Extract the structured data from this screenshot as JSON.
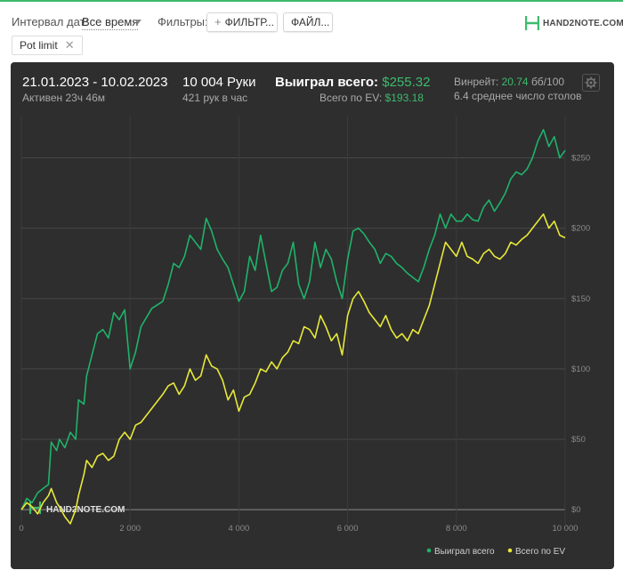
{
  "toolbar": {
    "interval_label": "Интервал дат:",
    "interval_value": "Все время",
    "filters_label": "Фильтры:",
    "filters_button": "ФИЛЬТР...",
    "files_button": "ФАЙЛ...",
    "logo_text": "HAND2NOTE.COM"
  },
  "chip": {
    "label": "Pot limit",
    "close": "✕"
  },
  "stats": {
    "date_range": "21.01.2023 - 10.02.2023",
    "active": "Активен 23ч 46м",
    "hands": "10 004 Руки",
    "hands_per_hour": "421 рук в час",
    "won_label": "Выиграл всего:",
    "won_value": "$255.32",
    "ev_label": "Всего по EV:",
    "ev_value": "$193.18",
    "winrate_label": "Винрейт:",
    "winrate_value": "20.74",
    "winrate_unit": "бб/100",
    "avg_tables": "6.4 среднее число столов"
  },
  "colors": {
    "won": "#1fb36a",
    "ev": "#e8e83a",
    "accent": "#3dbb6c",
    "panel": "#2e2e2e"
  },
  "chart_data": {
    "type": "line",
    "xlabel": "",
    "ylabel": "",
    "xlim": [
      0,
      10000
    ],
    "ylim": [
      -10,
      280
    ],
    "x_ticks": [
      0,
      2000,
      4000,
      6000,
      8000,
      10000
    ],
    "x_tick_labels": [
      "0",
      "2 000",
      "4 000",
      "6 000",
      "8 000",
      "10 000"
    ],
    "y_ticks": [
      0,
      50,
      100,
      150,
      200,
      250
    ],
    "y_tick_labels": [
      "$0",
      "$50",
      "$100",
      "$150",
      "$200",
      "$250"
    ],
    "grid": true,
    "legend_position": "bottom-right",
    "watermark": "HAND2NOTE.COM",
    "series": [
      {
        "name": "Выиграл всего",
        "color": "#1fb36a",
        "x": [
          0,
          100,
          200,
          300,
          400,
          500,
          550,
          650,
          700,
          800,
          900,
          1000,
          1050,
          1150,
          1200,
          1300,
          1400,
          1500,
          1600,
          1700,
          1800,
          1900,
          2000,
          2100,
          2200,
          2400,
          2600,
          2700,
          2800,
          2900,
          3000,
          3100,
          3200,
          3300,
          3400,
          3500,
          3600,
          3700,
          3800,
          3900,
          4000,
          4100,
          4200,
          4300,
          4400,
          4500,
          4600,
          4700,
          4800,
          4900,
          5000,
          5100,
          5200,
          5300,
          5400,
          5500,
          5600,
          5700,
          5800,
          5900,
          6000,
          6100,
          6200,
          6300,
          6400,
          6500,
          6600,
          6700,
          6800,
          6900,
          7000,
          7100,
          7200,
          7300,
          7400,
          7500,
          7600,
          7700,
          7800,
          7900,
          8000,
          8100,
          8200,
          8300,
          8400,
          8500,
          8600,
          8700,
          8800,
          8900,
          9000,
          9100,
          9200,
          9300,
          9400,
          9500,
          9600,
          9700,
          9800,
          9900,
          10000
        ],
        "y": [
          0,
          8,
          5,
          12,
          15,
          18,
          48,
          42,
          50,
          44,
          55,
          50,
          78,
          75,
          95,
          110,
          125,
          128,
          122,
          140,
          135,
          142,
          100,
          112,
          130,
          143,
          148,
          160,
          175,
          172,
          180,
          195,
          190,
          185,
          207,
          198,
          185,
          178,
          172,
          160,
          148,
          155,
          180,
          170,
          195,
          175,
          155,
          158,
          170,
          175,
          190,
          160,
          150,
          162,
          190,
          172,
          185,
          178,
          162,
          150,
          178,
          198,
          200,
          196,
          190,
          185,
          175,
          182,
          180,
          175,
          172,
          168,
          165,
          162,
          172,
          185,
          195,
          210,
          200,
          210,
          205,
          205,
          210,
          206,
          205,
          215,
          220,
          212,
          218,
          225,
          235,
          240,
          238,
          242,
          250,
          262,
          270,
          258,
          265,
          250,
          255.32
        ]
      },
      {
        "name": "Всего по EV",
        "color": "#e8e83a",
        "x": [
          0,
          100,
          200,
          300,
          400,
          500,
          550,
          650,
          700,
          800,
          900,
          1000,
          1050,
          1150,
          1200,
          1300,
          1400,
          1500,
          1600,
          1700,
          1800,
          1900,
          2000,
          2100,
          2200,
          2400,
          2600,
          2700,
          2800,
          2900,
          3000,
          3100,
          3200,
          3300,
          3400,
          3500,
          3600,
          3700,
          3800,
          3900,
          4000,
          4100,
          4200,
          4300,
          4400,
          4500,
          4600,
          4700,
          4800,
          4900,
          5000,
          5100,
          5200,
          5300,
          5400,
          5500,
          5600,
          5700,
          5800,
          5900,
          6000,
          6100,
          6200,
          6300,
          6400,
          6500,
          6600,
          6700,
          6800,
          6900,
          7000,
          7100,
          7200,
          7300,
          7400,
          7500,
          7600,
          7700,
          7800,
          7900,
          8000,
          8100,
          8200,
          8300,
          8400,
          8500,
          8600,
          8700,
          8800,
          8900,
          9000,
          9100,
          9200,
          9300,
          9400,
          9500,
          9600,
          9700,
          9800,
          9900,
          10000
        ],
        "y": [
          0,
          5,
          2,
          -3,
          5,
          10,
          15,
          5,
          2,
          -5,
          -10,
          0,
          10,
          25,
          35,
          30,
          38,
          40,
          35,
          38,
          50,
          55,
          50,
          60,
          62,
          72,
          82,
          88,
          90,
          82,
          88,
          100,
          92,
          95,
          110,
          102,
          100,
          92,
          78,
          85,
          70,
          80,
          82,
          90,
          100,
          98,
          105,
          100,
          108,
          112,
          120,
          118,
          130,
          128,
          122,
          138,
          130,
          120,
          125,
          110,
          138,
          150,
          155,
          148,
          140,
          135,
          130,
          138,
          128,
          122,
          125,
          120,
          128,
          125,
          135,
          145,
          160,
          175,
          190,
          185,
          180,
          190,
          180,
          178,
          175,
          182,
          185,
          180,
          178,
          182,
          190,
          188,
          192,
          195,
          200,
          205,
          210,
          200,
          205,
          195,
          193.18
        ]
      }
    ]
  }
}
